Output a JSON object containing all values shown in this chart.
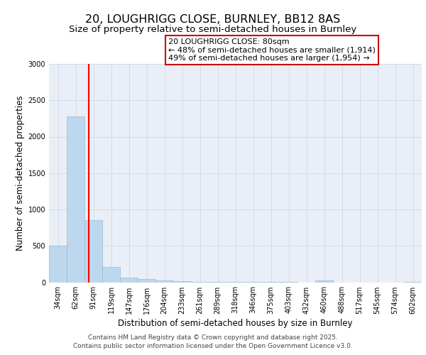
{
  "title_line1": "20, LOUGHRIGG CLOSE, BURNLEY, BB12 8AS",
  "title_line2": "Size of property relative to semi-detached houses in Burnley",
  "xlabel": "Distribution of semi-detached houses by size in Burnley",
  "ylabel": "Number of semi-detached properties",
  "categories": [
    "34sqm",
    "62sqm",
    "91sqm",
    "119sqm",
    "147sqm",
    "176sqm",
    "204sqm",
    "233sqm",
    "261sqm",
    "289sqm",
    "318sqm",
    "346sqm",
    "375sqm",
    "403sqm",
    "432sqm",
    "460sqm",
    "488sqm",
    "517sqm",
    "545sqm",
    "574sqm",
    "602sqm"
  ],
  "values": [
    505,
    2280,
    850,
    205,
    65,
    40,
    25,
    12,
    6,
    4,
    2,
    1,
    1,
    1,
    0,
    28,
    0,
    0,
    0,
    0,
    2
  ],
  "bar_color": "#bdd7ee",
  "bar_edge_color": "#9db8cc",
  "red_line_x": 1.72,
  "annotation_text": "20 LOUGHRIGG CLOSE: 80sqm\n← 48% of semi-detached houses are smaller (1,914)\n49% of semi-detached houses are larger (1,954) →",
  "annotation_box_color": "#ffffff",
  "annotation_box_edge": "#cc0000",
  "ylim": [
    0,
    3000
  ],
  "yticks": [
    0,
    500,
    1000,
    1500,
    2000,
    2500,
    3000
  ],
  "grid_color": "#d0d8e4",
  "background_color": "#eaeff7",
  "footer_line1": "Contains HM Land Registry data © Crown copyright and database right 2025.",
  "footer_line2": "Contains public sector information licensed under the Open Government Licence v3.0.",
  "title_fontsize": 11.5,
  "subtitle_fontsize": 9.5,
  "axis_label_fontsize": 8.5,
  "tick_fontsize": 7,
  "annotation_fontsize": 8,
  "footer_fontsize": 6.5
}
